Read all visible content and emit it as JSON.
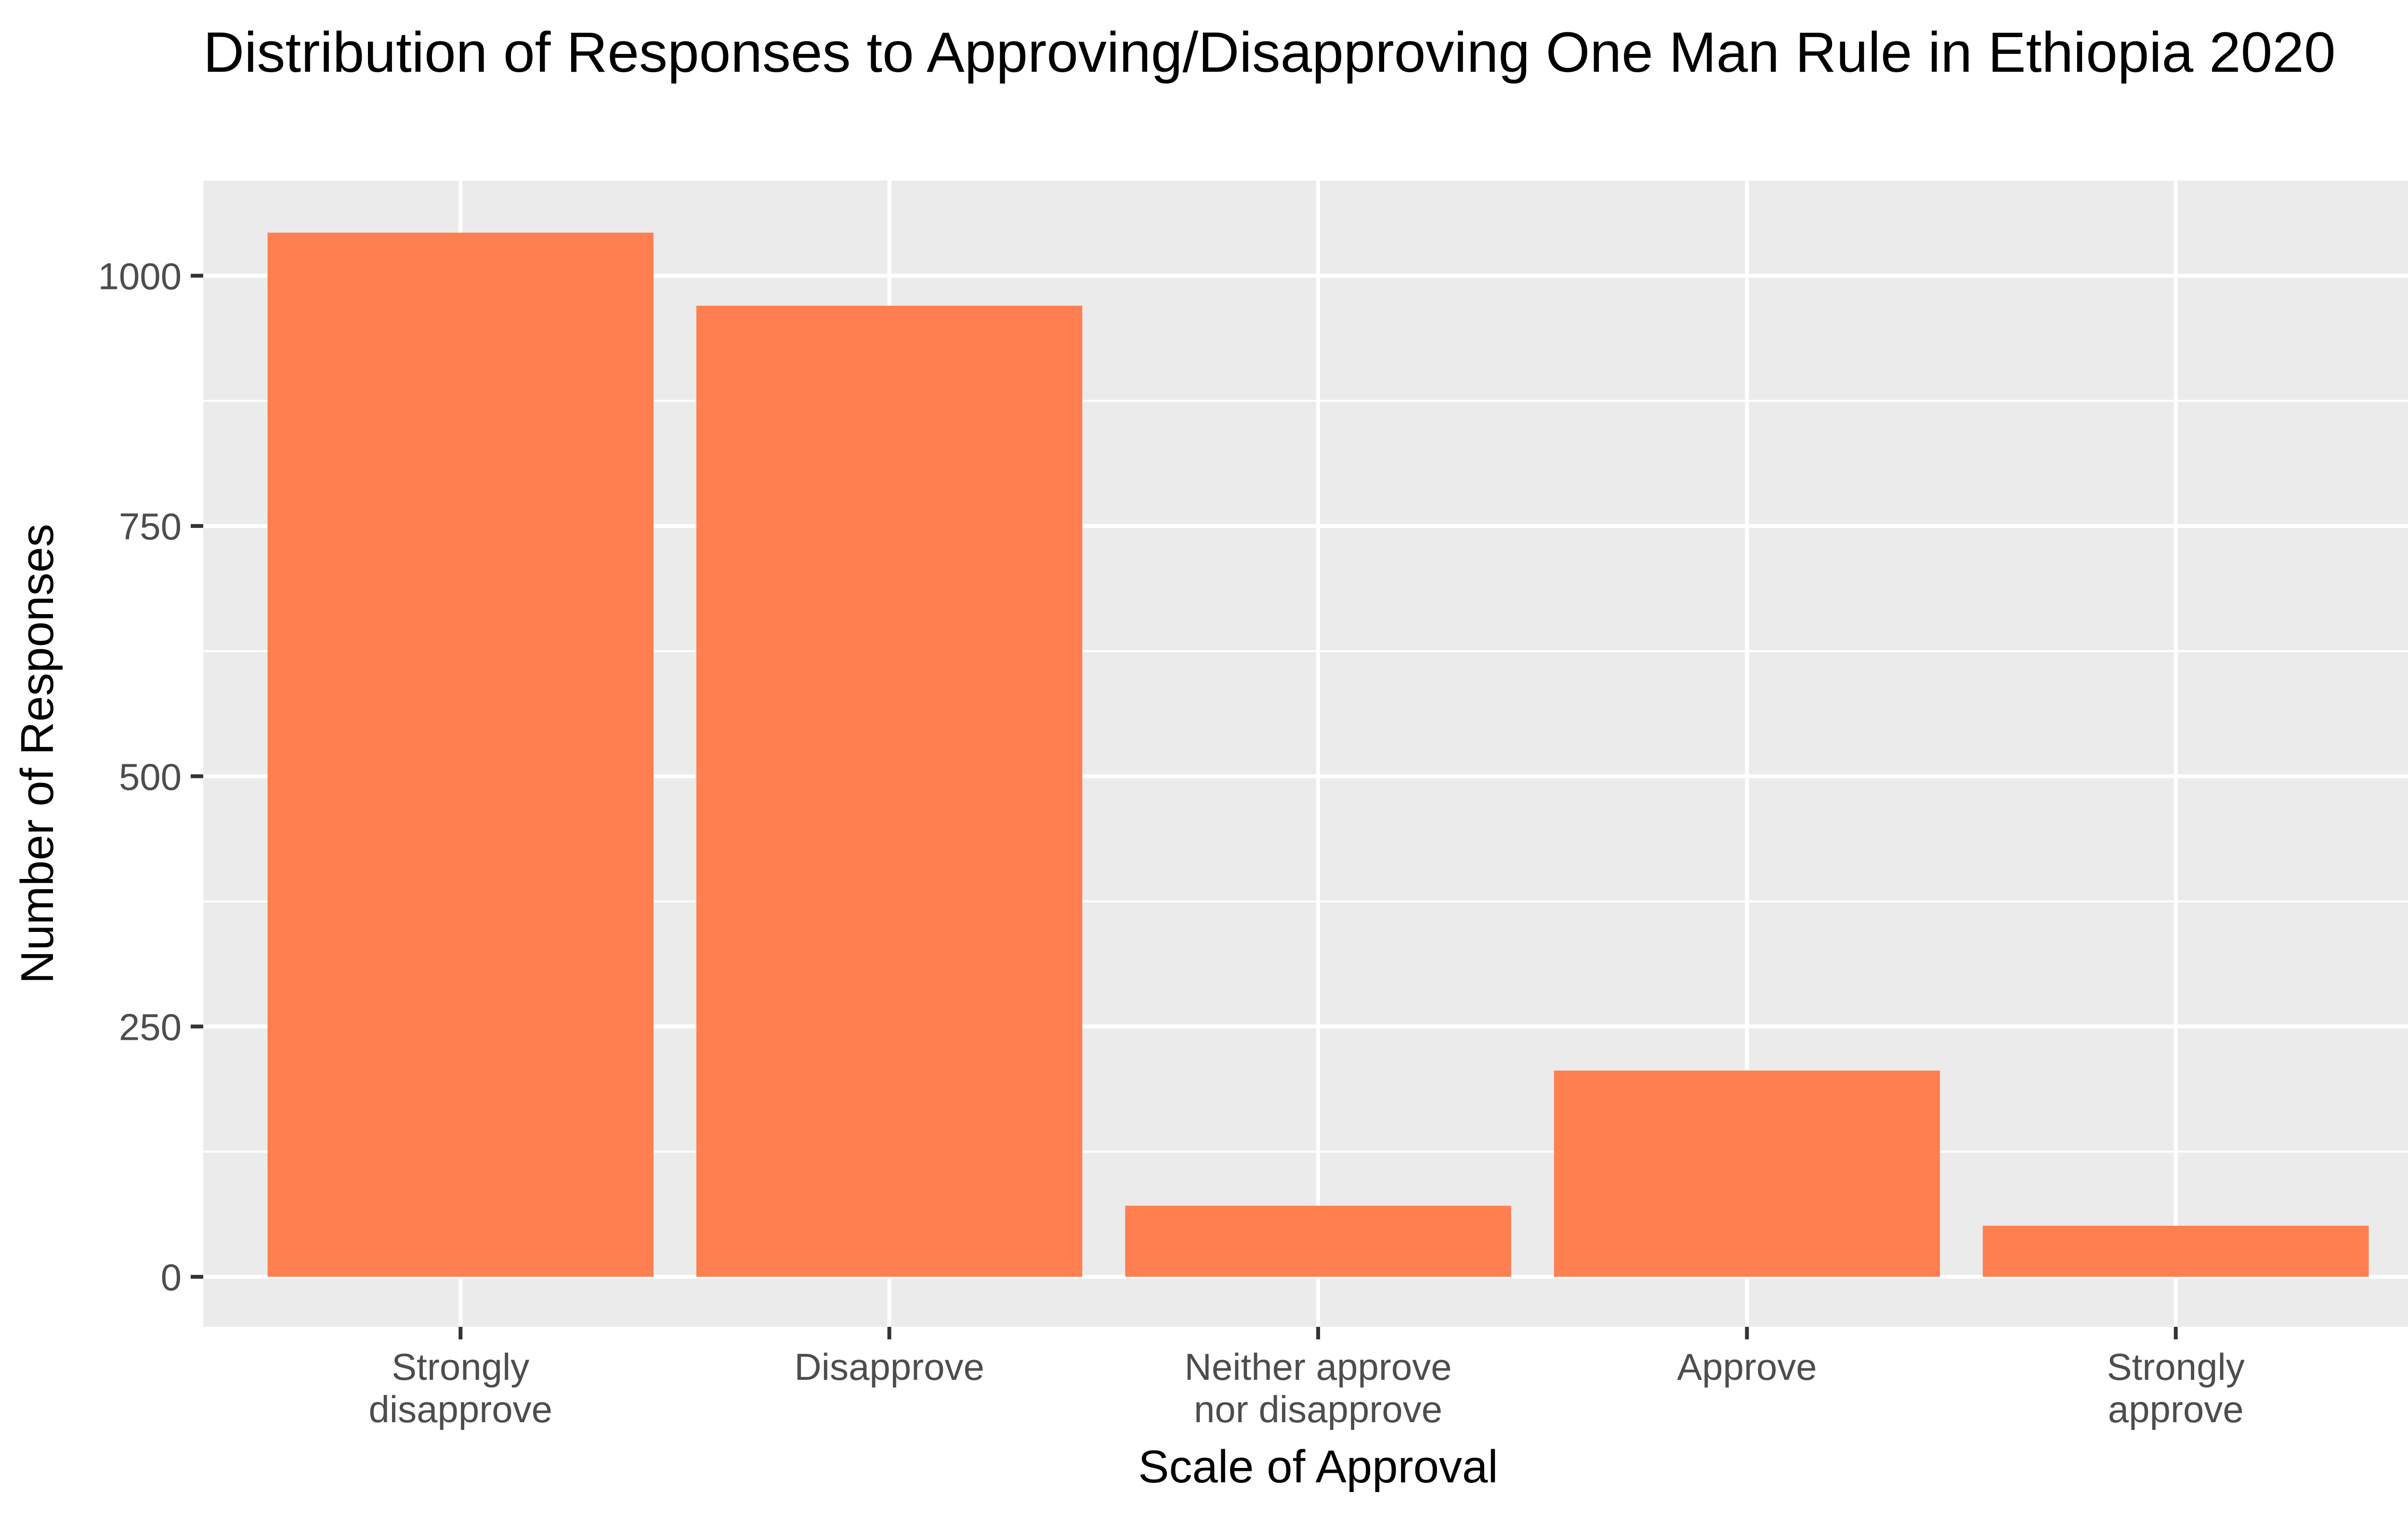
{
  "chart_data": {
    "type": "bar",
    "title": "Distribution of Responses to Approving/Disapproving One Man Rule in Ethiopia 2020",
    "xlabel": "Scale of Approval",
    "ylabel": "Number of Responses",
    "categories": [
      [
        "Strongly",
        "disapprove"
      ],
      [
        "Disapprove"
      ],
      [
        "Neither approve",
        "nor disapprove"
      ],
      [
        "Approve"
      ],
      [
        "Strongly",
        "approve"
      ]
    ],
    "values": [
      1043,
      970,
      71,
      206,
      51
    ],
    "ylim": [
      -50,
      1095
    ],
    "yticks": [
      0,
      250,
      500,
      750,
      1000
    ],
    "ytick_labels": [
      "0",
      "250",
      "500",
      "750",
      "1000"
    ],
    "grid": true,
    "legend": "none",
    "colors": {
      "bar": "#FF7F50",
      "panel": "#EBEBEB",
      "grid": "#FFFFFF",
      "tick": "#333333",
      "tick_text": "#4D4D4D"
    }
  }
}
